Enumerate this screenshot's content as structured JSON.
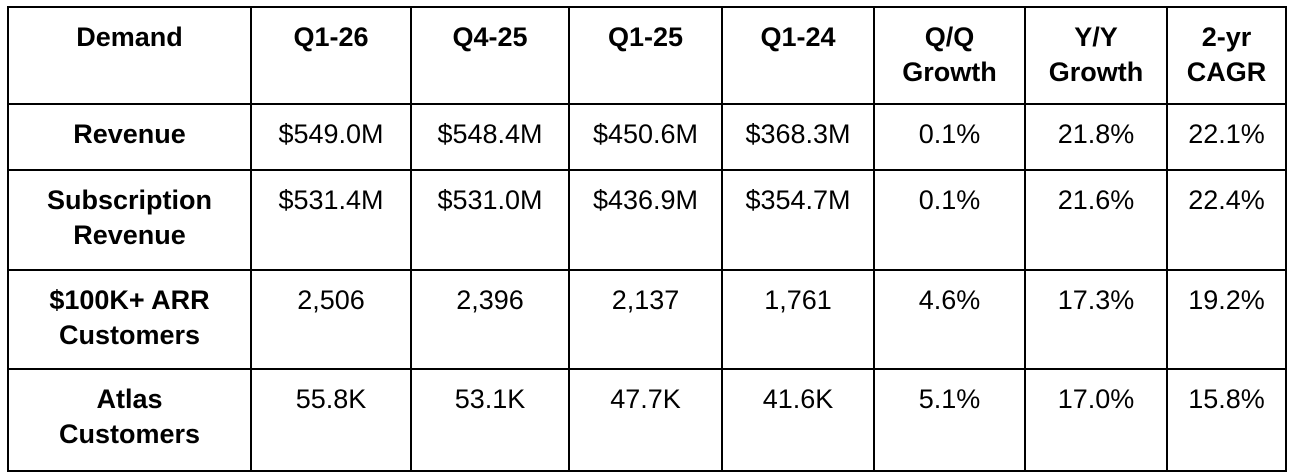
{
  "table": {
    "columns": [
      [
        "Demand"
      ],
      [
        "Q1-26"
      ],
      [
        "Q4-25"
      ],
      [
        "Q1-25"
      ],
      [
        "Q1-24"
      ],
      [
        "Q/Q",
        "Growth"
      ],
      [
        "Y/Y",
        "Growth"
      ],
      [
        "2-yr",
        "CAGR"
      ]
    ],
    "rows": [
      {
        "label": [
          "Revenue"
        ],
        "values": [
          "$549.0M",
          "$548.4M",
          "$450.6M",
          "$368.3M",
          "0.1%",
          "21.8%",
          "22.1%"
        ]
      },
      {
        "label": [
          "Subscription",
          "Revenue"
        ],
        "values": [
          "$531.4M",
          "$531.0M",
          "$436.9M",
          "$354.7M",
          "0.1%",
          "21.6%",
          "22.4%"
        ]
      },
      {
        "label": [
          "$100K+ ARR",
          "Customers"
        ],
        "values": [
          "2,506",
          "2,396",
          "2,137",
          "1,761",
          "4.6%",
          "17.3%",
          "19.2%"
        ]
      },
      {
        "label": [
          "Atlas",
          "Customers"
        ],
        "values": [
          "55.8K",
          "53.1K",
          "47.7K",
          "41.6K",
          "5.1%",
          "17.0%",
          "15.8%"
        ]
      }
    ]
  }
}
